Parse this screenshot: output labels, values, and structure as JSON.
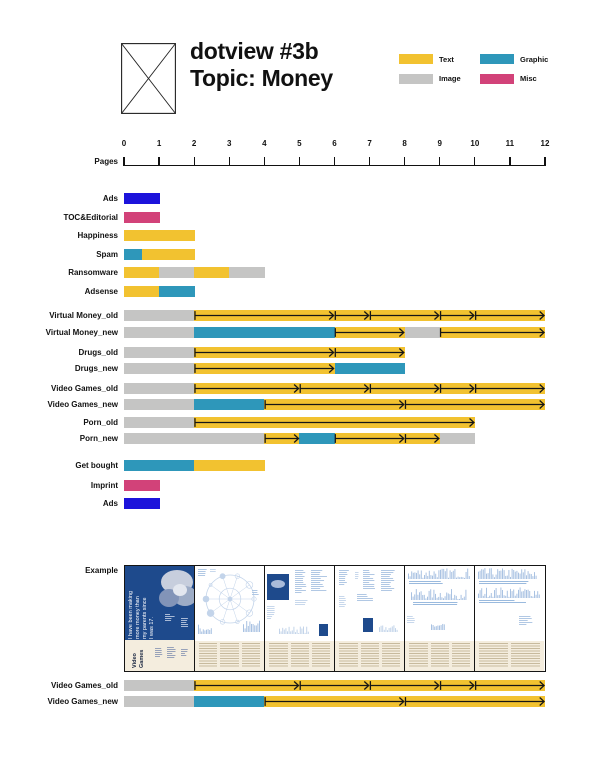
{
  "header": {
    "title_line1": "dotview #3b",
    "title_line2": "Topic: Money"
  },
  "legend": {
    "items": [
      {
        "label": "Text",
        "color_key": "text"
      },
      {
        "label": "Graphic",
        "color_key": "graphic"
      },
      {
        "label": "Image",
        "color_key": "image"
      },
      {
        "label": "Misc",
        "color_key": "misc"
      }
    ]
  },
  "example": {
    "label": "Example",
    "cover_quote_lines": [
      "I have been making",
      "more money than",
      "my parents since",
      "I was 17."
    ],
    "section_label": "Video Games",
    "page_count": 6
  },
  "chart_data": {
    "type": "bar",
    "subtype": "stacked-horizontal-page-spans",
    "title": "dotview #3b — Topic: Money",
    "xlabel": "Pages",
    "x_range": [
      0,
      12
    ],
    "x_ticks": [
      0,
      1,
      2,
      3,
      4,
      5,
      6,
      7,
      8,
      9,
      10,
      11,
      12
    ],
    "legend_entries": [
      "Text",
      "Graphic",
      "Image",
      "Misc"
    ],
    "segment_colors": {
      "text": "#F2C230",
      "graphic": "#2E97BA",
      "image": "#C5C5C4",
      "misc": "#D24279",
      "ad": "#1C13DB"
    },
    "groups": [
      {
        "id": "front-matter",
        "rows": [
          {
            "label": "Ads",
            "segments": [
              [
                "ad",
                0,
                1
              ]
            ],
            "arrows": []
          },
          {
            "label": "TOC&Editorial",
            "segments": [
              [
                "misc",
                0,
                1
              ]
            ],
            "arrows": []
          },
          {
            "label": "Happiness",
            "segments": [
              [
                "text",
                0,
                2
              ]
            ],
            "arrows": []
          },
          {
            "label": "Spam",
            "segments": [
              [
                "graphic",
                0,
                0.5
              ],
              [
                "text",
                0.5,
                2
              ]
            ],
            "arrows": []
          },
          {
            "label": "Ransomware",
            "segments": [
              [
                "text",
                0,
                1
              ],
              [
                "image",
                1,
                2
              ],
              [
                "text",
                2,
                3
              ],
              [
                "image",
                3,
                4
              ]
            ],
            "arrows": []
          },
          {
            "label": "Adsense",
            "segments": [
              [
                "text",
                0,
                1
              ],
              [
                "graphic",
                1,
                2
              ]
            ],
            "arrows": []
          }
        ]
      },
      {
        "id": "articles",
        "rows": [
          {
            "label": "Virtual Money_old",
            "segments": [
              [
                "image",
                0,
                2
              ],
              [
                "text",
                2,
                12
              ]
            ],
            "arrows": [
              [
                2,
                6
              ],
              [
                6,
                7
              ],
              [
                7,
                9
              ],
              [
                9,
                10
              ],
              [
                10,
                12
              ]
            ]
          },
          {
            "label": "Virtual Money_new",
            "segments": [
              [
                "image",
                0,
                2
              ],
              [
                "graphic",
                2,
                6
              ],
              [
                "text",
                6,
                8
              ],
              [
                "image",
                8,
                9
              ],
              [
                "text",
                9,
                12
              ]
            ],
            "arrows": [
              [
                6,
                8
              ],
              [
                9,
                12
              ]
            ]
          },
          {
            "label": "Drugs_old",
            "segments": [
              [
                "image",
                0,
                2
              ],
              [
                "text",
                2,
                8
              ]
            ],
            "arrows": [
              [
                2,
                6
              ],
              [
                6,
                8
              ]
            ]
          },
          {
            "label": "Drugs_new",
            "segments": [
              [
                "image",
                0,
                2
              ],
              [
                "text",
                2,
                6
              ],
              [
                "graphic",
                6,
                8
              ]
            ],
            "arrows": [
              [
                2,
                6
              ]
            ]
          },
          {
            "label": "Video Games_old",
            "segments": [
              [
                "image",
                0,
                2
              ],
              [
                "text",
                2,
                12
              ]
            ],
            "arrows": [
              [
                2,
                5
              ],
              [
                5,
                7
              ],
              [
                7,
                9
              ],
              [
                9,
                10
              ],
              [
                10,
                12
              ]
            ]
          },
          {
            "label": "Video Games_new",
            "segments": [
              [
                "image",
                0,
                2
              ],
              [
                "graphic",
                2,
                4
              ],
              [
                "text",
                4,
                12
              ]
            ],
            "arrows": [
              [
                4,
                8
              ],
              [
                8,
                12
              ]
            ]
          },
          {
            "label": "Porn_old",
            "segments": [
              [
                "image",
                0,
                2
              ],
              [
                "text",
                2,
                10
              ]
            ],
            "arrows": [
              [
                2,
                10
              ]
            ]
          },
          {
            "label": "Porn_new",
            "segments": [
              [
                "image",
                0,
                4
              ],
              [
                "text",
                4,
                5
              ],
              [
                "graphic",
                5,
                6
              ],
              [
                "text",
                6,
                9
              ],
              [
                "image",
                9,
                10
              ]
            ],
            "arrows": [
              [
                4,
                5
              ],
              [
                6,
                8
              ],
              [
                8,
                9
              ]
            ]
          }
        ]
      },
      {
        "id": "back-matter",
        "rows": [
          {
            "label": "Get bought",
            "segments": [
              [
                "graphic",
                0,
                2
              ],
              [
                "text",
                2,
                4
              ]
            ],
            "arrows": []
          },
          {
            "label": "Imprint",
            "segments": [
              [
                "misc",
                0,
                1
              ]
            ],
            "arrows": []
          },
          {
            "label": "Ads",
            "segments": [
              [
                "ad",
                0,
                1
              ]
            ],
            "arrows": []
          }
        ]
      },
      {
        "id": "example-comparison",
        "rows": [
          {
            "label": "Video Games_old",
            "segments": [
              [
                "image",
                0,
                2
              ],
              [
                "text",
                2,
                12
              ]
            ],
            "arrows": [
              [
                2,
                5
              ],
              [
                5,
                7
              ],
              [
                7,
                9
              ],
              [
                9,
                10
              ],
              [
                10,
                12
              ]
            ]
          },
          {
            "label": "Video Games_new",
            "segments": [
              [
                "image",
                0,
                2
              ],
              [
                "graphic",
                2,
                4
              ],
              [
                "text",
                4,
                12
              ]
            ],
            "arrows": [
              [
                4,
                8
              ],
              [
                8,
                12
              ]
            ]
          }
        ]
      }
    ]
  }
}
